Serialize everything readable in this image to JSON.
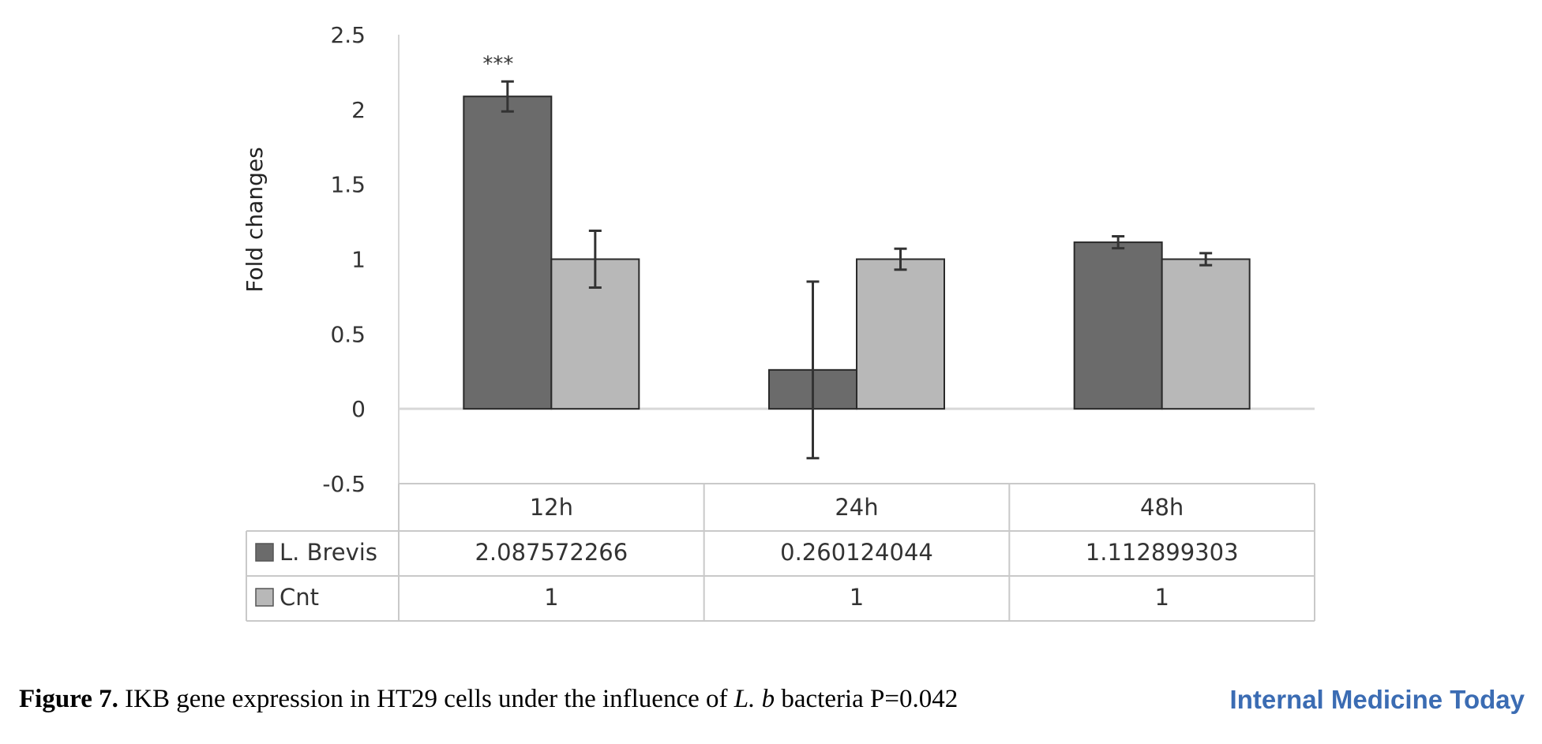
{
  "chart_data": {
    "type": "bar",
    "categories": [
      "12h",
      "24h",
      "48h"
    ],
    "series": [
      {
        "name": "L. Brevis",
        "values": [
          2.087572266,
          0.260124044,
          1.112899303
        ],
        "errors": [
          0.1,
          0.59,
          0.04
        ],
        "color": "#6b6b6b",
        "labels": [
          "2.087572266",
          "0.260124044",
          "1.112899303"
        ]
      },
      {
        "name": "Cnt",
        "values": [
          1,
          1,
          1
        ],
        "errors": [
          0.19,
          0.07,
          0.04
        ],
        "color": "#b8b8b8",
        "labels": [
          "1",
          "1",
          "1"
        ]
      }
    ],
    "ylabel": "Fold changes",
    "ylim": [
      -0.5,
      2.5
    ],
    "yticks": [
      "2.5",
      "2",
      "1.5",
      "1",
      "0.5",
      "0",
      "-0.5"
    ],
    "annotations": [
      {
        "series": 0,
        "category": 0,
        "text": "***"
      }
    ],
    "data_table": true
  },
  "caption": {
    "label": "Figure 7.",
    "text_before": " IKB gene expression in HT29 cells under the influence of ",
    "species": "L. b",
    "text_after": " bacteria P=0.042"
  },
  "journal": "Internal Medicine Today"
}
